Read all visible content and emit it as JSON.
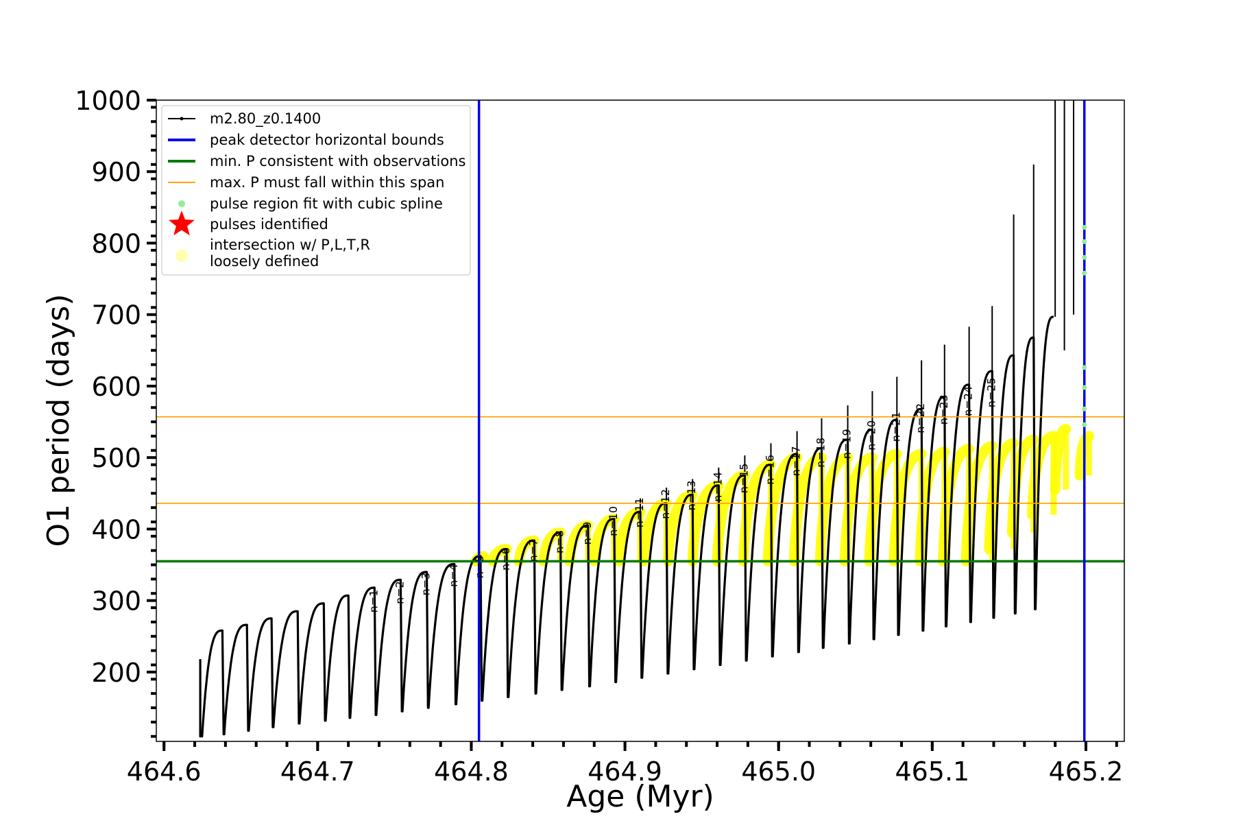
{
  "chart_data": {
    "type": "line",
    "xlabel": "Age (Myr)",
    "ylabel": "O1 period (days)",
    "xlim": [
      464.595,
      465.225
    ],
    "ylim": [
      103,
      1000
    ],
    "xticks": [
      464.6,
      464.7,
      464.8,
      464.9,
      465.0,
      465.1,
      465.2
    ],
    "xtick_labels": [
      "464.6",
      "464.7",
      "464.8",
      "464.9",
      "465.0",
      "465.1",
      "465.2"
    ],
    "yticks": [
      200,
      300,
      400,
      500,
      600,
      700,
      800,
      900,
      1000
    ],
    "ytick_labels": [
      "200",
      "300",
      "400",
      "500",
      "600",
      "700",
      "800",
      "900",
      "1000"
    ],
    "legend": {
      "position": "top-left",
      "entries": [
        {
          "label": "m2.80_z0.1400",
          "style": "line-marker",
          "color": "#000000"
        },
        {
          "label": "peak detector horizontal bounds",
          "style": "line",
          "color": "#0000ee"
        },
        {
          "label": "min. P consistent with observations",
          "style": "line",
          "color": "#007a00"
        },
        {
          "label": "max. P must fall within this span",
          "style": "thin-line",
          "color": "#ffa500"
        },
        {
          "label": "pulse region fit with cubic spline",
          "style": "dot",
          "color": "#90ee90"
        },
        {
          "label": "pulses identified",
          "style": "star",
          "color": "#ff0000"
        },
        {
          "label": "intersection w/ P,L,T,R\nloosely defined",
          "style": "circle",
          "color": "#ffffb0"
        }
      ]
    },
    "vertical_lines": [
      {
        "x": 464.805,
        "color": "#0000ee"
      },
      {
        "x": 465.199,
        "color": "#0000ee"
      }
    ],
    "horizontal_lines": [
      {
        "y": 355,
        "color": "#007a00"
      },
      {
        "y": 436,
        "color": "#ffa500"
      },
      {
        "y": 557,
        "color": "#ffa500"
      }
    ],
    "pulses": [
      {
        "t": 464.638,
        "min": 110,
        "peak": 258
      },
      {
        "t": 464.654,
        "min": 113,
        "peak": 266
      },
      {
        "t": 464.67,
        "min": 118,
        "peak": 275
      },
      {
        "t": 464.687,
        "min": 123,
        "peak": 285
      },
      {
        "t": 464.704,
        "min": 128,
        "peak": 296
      },
      {
        "t": 464.72,
        "min": 132,
        "peak": 307
      },
      {
        "t": 464.737,
        "min": 136,
        "peak": 318
      },
      {
        "t": 464.754,
        "min": 140,
        "peak": 329
      },
      {
        "t": 464.771,
        "min": 145,
        "peak": 340
      },
      {
        "t": 464.789,
        "min": 150,
        "peak": 351
      },
      {
        "t": 464.806,
        "min": 155,
        "peak": 362
      },
      {
        "t": 464.823,
        "min": 160,
        "peak": 372
      },
      {
        "t": 464.841,
        "min": 165,
        "peak": 384
      },
      {
        "t": 464.858,
        "min": 170,
        "peak": 395
      },
      {
        "t": 464.876,
        "min": 175,
        "peak": 405
      },
      {
        "t": 464.893,
        "min": 180,
        "peak": 414
      },
      {
        "t": 464.91,
        "min": 186,
        "peak": 424
      },
      {
        "t": 464.927,
        "min": 192,
        "peak": 436
      },
      {
        "t": 464.944,
        "min": 198,
        "peak": 448
      },
      {
        "t": 464.961,
        "min": 204,
        "peak": 461
      },
      {
        "t": 464.978,
        "min": 210,
        "peak": 475
      },
      {
        "t": 464.995,
        "min": 216,
        "peak": 490
      },
      {
        "t": 465.012,
        "min": 222,
        "peak": 505
      },
      {
        "t": 465.028,
        "min": 228,
        "peak": 513
      },
      {
        "t": 465.045,
        "min": 234,
        "peak": 525
      },
      {
        "t": 465.061,
        "min": 240,
        "peak": 539
      },
      {
        "t": 465.077,
        "min": 246,
        "peak": 553
      },
      {
        "t": 465.093,
        "min": 252,
        "peak": 568
      },
      {
        "t": 465.108,
        "min": 258,
        "peak": 585
      },
      {
        "t": 465.124,
        "min": 264,
        "peak": 602
      },
      {
        "t": 465.139,
        "min": 270,
        "peak": 621
      },
      {
        "t": 465.153,
        "min": 276,
        "peak": 643
      },
      {
        "t": 465.166,
        "min": 282,
        "peak": 668
      },
      {
        "t": 465.179,
        "min": 288,
        "peak": 697
      }
    ],
    "spikes": [
      {
        "x": 464.91,
        "y1": 420,
        "y2": 443
      },
      {
        "x": 464.927,
        "y1": 440,
        "y2": 458
      },
      {
        "x": 464.944,
        "y1": 450,
        "y2": 470
      },
      {
        "x": 464.961,
        "y1": 466,
        "y2": 486
      },
      {
        "x": 464.978,
        "y1": 480,
        "y2": 503
      },
      {
        "x": 464.995,
        "y1": 495,
        "y2": 520
      },
      {
        "x": 465.012,
        "y1": 500,
        "y2": 537
      },
      {
        "x": 465.028,
        "y1": 513,
        "y2": 555
      },
      {
        "x": 465.045,
        "y1": 525,
        "y2": 573
      },
      {
        "x": 465.061,
        "y1": 539,
        "y2": 593
      },
      {
        "x": 465.077,
        "y1": 553,
        "y2": 613
      },
      {
        "x": 465.093,
        "y1": 568,
        "y2": 636
      },
      {
        "x": 465.108,
        "y1": 585,
        "y2": 658
      },
      {
        "x": 465.124,
        "y1": 602,
        "y2": 683
      },
      {
        "x": 465.139,
        "y1": 621,
        "y2": 712
      },
      {
        "x": 465.153,
        "y1": 643,
        "y2": 840
      },
      {
        "x": 465.166,
        "y1": 668,
        "y2": 910
      },
      {
        "x": 465.18,
        "y1": 697,
        "y2": 1000
      },
      {
        "x": 465.186,
        "y1": 650,
        "y2": 1000
      },
      {
        "x": 465.192,
        "y1": 700,
        "y2": 1000
      }
    ],
    "highlight_segments": [
      {
        "x1": 464.803,
        "x2": 464.808,
        "y1": 355,
        "y2": 362
      },
      {
        "x1": 464.814,
        "x2": 464.823,
        "y1": 355,
        "y2": 372
      },
      {
        "x1": 464.831,
        "x2": 464.841,
        "y1": 355,
        "y2": 384
      },
      {
        "x1": 464.847,
        "x2": 464.858,
        "y1": 355,
        "y2": 395
      },
      {
        "x1": 464.864,
        "x2": 464.876,
        "y1": 355,
        "y2": 405
      },
      {
        "x1": 464.88,
        "x2": 464.893,
        "y1": 355,
        "y2": 414
      },
      {
        "x1": 464.896,
        "x2": 464.91,
        "y1": 355,
        "y2": 424
      },
      {
        "x1": 464.912,
        "x2": 464.927,
        "y1": 355,
        "y2": 436
      },
      {
        "x1": 464.928,
        "x2": 464.944,
        "y1": 355,
        "y2": 448
      },
      {
        "x1": 464.944,
        "x2": 464.961,
        "y1": 355,
        "y2": 461
      },
      {
        "x1": 464.96,
        "x2": 464.978,
        "y1": 355,
        "y2": 475
      },
      {
        "x1": 464.977,
        "x2": 464.995,
        "y1": 355,
        "y2": 490
      },
      {
        "x1": 464.993,
        "x2": 465.012,
        "y1": 355,
        "y2": 500
      },
      {
        "x1": 465.01,
        "x2": 465.028,
        "y1": 355,
        "y2": 500
      },
      {
        "x1": 465.027,
        "x2": 465.045,
        "y1": 355,
        "y2": 500
      },
      {
        "x1": 465.043,
        "x2": 465.061,
        "y1": 355,
        "y2": 500
      },
      {
        "x1": 465.059,
        "x2": 465.077,
        "y1": 355,
        "y2": 505
      },
      {
        "x1": 465.075,
        "x2": 465.093,
        "y1": 355,
        "y2": 505
      },
      {
        "x1": 465.092,
        "x2": 465.108,
        "y1": 355,
        "y2": 508
      },
      {
        "x1": 465.107,
        "x2": 465.124,
        "y1": 355,
        "y2": 512
      },
      {
        "x1": 465.122,
        "x2": 465.139,
        "y1": 355,
        "y2": 516
      },
      {
        "x1": 465.137,
        "x2": 465.153,
        "y1": 372,
        "y2": 520
      },
      {
        "x1": 465.152,
        "x2": 465.166,
        "y1": 395,
        "y2": 525
      },
      {
        "x1": 465.165,
        "x2": 465.179,
        "y1": 420,
        "y2": 530
      },
      {
        "x1": 465.18,
        "x2": 465.187,
        "y1": 455,
        "y2": 540
      },
      {
        "x1": 465.196,
        "x2": 465.202,
        "y1": 475,
        "y2": 530
      }
    ],
    "spline_points": [
      {
        "x": 465.199,
        "y": 822
      },
      {
        "x": 465.199,
        "y": 802
      },
      {
        "x": 465.199,
        "y": 780
      },
      {
        "x": 465.199,
        "y": 758
      },
      {
        "x": 465.199,
        "y": 626
      },
      {
        "x": 465.199,
        "y": 598
      },
      {
        "x": 465.199,
        "y": 568
      },
      {
        "x": 465.199,
        "y": 546
      }
    ],
    "annotations": [
      {
        "text": "n=1",
        "x": 464.737,
        "y": 283
      },
      {
        "text": "n=2",
        "x": 464.754,
        "y": 295
      },
      {
        "text": "n=3",
        "x": 464.771,
        "y": 307
      },
      {
        "text": "n=4",
        "x": 464.789,
        "y": 319
      },
      {
        "text": "n=5",
        "x": 464.806,
        "y": 331
      },
      {
        "text": "n=6",
        "x": 464.823,
        "y": 342
      },
      {
        "text": "n=7",
        "x": 464.841,
        "y": 354
      },
      {
        "text": "n=8",
        "x": 464.858,
        "y": 366
      },
      {
        "text": "n=9",
        "x": 464.876,
        "y": 378
      },
      {
        "text": "n=10",
        "x": 464.893,
        "y": 390
      },
      {
        "text": "n=11",
        "x": 464.91,
        "y": 402
      },
      {
        "text": "n=12",
        "x": 464.927,
        "y": 414
      },
      {
        "text": "n=13",
        "x": 464.944,
        "y": 426
      },
      {
        "text": "n=14",
        "x": 464.961,
        "y": 438
      },
      {
        "text": "n=15",
        "x": 464.978,
        "y": 450
      },
      {
        "text": "n=16",
        "x": 464.995,
        "y": 462
      },
      {
        "text": "n=17",
        "x": 465.012,
        "y": 474
      },
      {
        "text": "n=18",
        "x": 465.028,
        "y": 486
      },
      {
        "text": "n=19",
        "x": 465.045,
        "y": 498
      },
      {
        "text": "n=20",
        "x": 465.061,
        "y": 510
      },
      {
        "text": "n=21",
        "x": 465.077,
        "y": 522
      },
      {
        "text": "n=22",
        "x": 465.093,
        "y": 534
      },
      {
        "text": "n=23",
        "x": 465.108,
        "y": 546
      },
      {
        "text": "n=24",
        "x": 465.124,
        "y": 558
      },
      {
        "text": "n=25",
        "x": 465.139,
        "y": 570
      }
    ],
    "grid": false
  }
}
